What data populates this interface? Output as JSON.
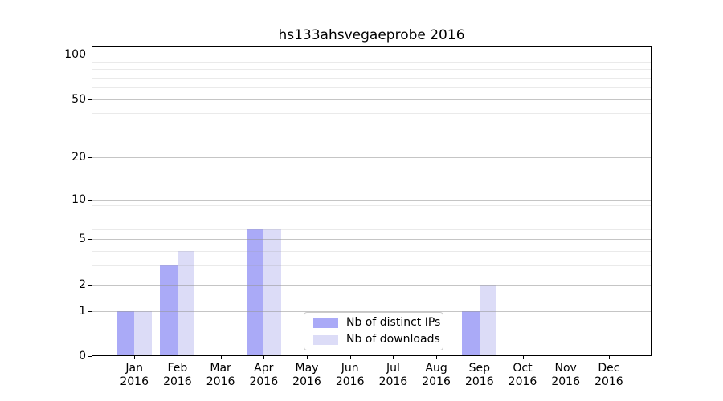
{
  "title": "hs133ahsvegaeprobe 2016",
  "chart_data": {
    "type": "bar",
    "title": "hs133ahsvegaeprobe 2016",
    "categories": [
      "Jan",
      "Feb",
      "Mar",
      "Apr",
      "May",
      "Jun",
      "Jul",
      "Aug",
      "Sep",
      "Oct",
      "Nov",
      "Dec"
    ],
    "category_sublabel": "2016",
    "series": [
      {
        "name": "Nb of distinct IPs",
        "color": "#aaaaf7",
        "values": [
          1,
          3,
          0,
          6,
          0,
          0,
          0,
          0,
          1,
          0,
          0,
          0
        ]
      },
      {
        "name": "Nb of downloads",
        "color": "#dcdcf7",
        "values": [
          1,
          4,
          0,
          6,
          0,
          0,
          0,
          0,
          2,
          0,
          0,
          0
        ]
      }
    ],
    "yscale": "log10(value+1)",
    "ylim": [
      0,
      115
    ],
    "y_major_ticks": [
      0,
      1,
      2,
      5,
      10,
      20,
      50,
      100
    ],
    "y_minor_ticks": [
      3,
      4,
      6,
      7,
      8,
      9,
      30,
      40,
      60,
      70,
      80,
      90
    ],
    "grid": "horizontal",
    "legend_position": "lower center",
    "colors": {
      "grid_major": "#c6c6c6",
      "grid_minor": "#e9e9e9",
      "axis": "#000000",
      "text": "#000000",
      "background": "#ffffff"
    }
  }
}
